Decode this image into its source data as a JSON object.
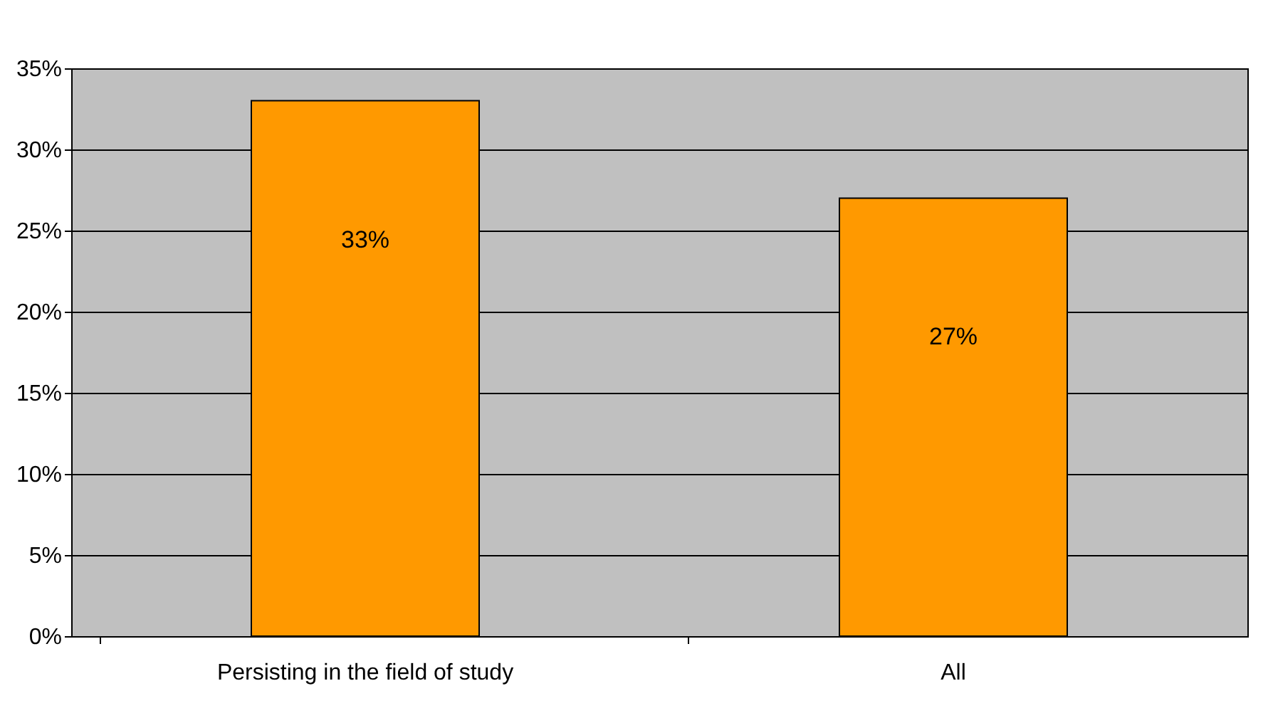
{
  "chart_data": {
    "type": "bar",
    "categories": [
      "Persisting in the field of study",
      "All"
    ],
    "values": [
      33,
      27
    ],
    "color": "#ff9900",
    "value_labels": [
      "33%",
      "27%"
    ],
    "ylim": [
      0,
      35
    ],
    "yticks": [
      {
        "value": 0,
        "label": "0%"
      },
      {
        "value": 5,
        "label": "5%"
      },
      {
        "value": 10,
        "label": "10%"
      },
      {
        "value": 15,
        "label": "15%"
      },
      {
        "value": 20,
        "label": "20%"
      },
      {
        "value": 25,
        "label": "25%"
      },
      {
        "value": 30,
        "label": "30%"
      },
      {
        "value": 35,
        "label": "35%"
      }
    ],
    "grid": "y"
  }
}
